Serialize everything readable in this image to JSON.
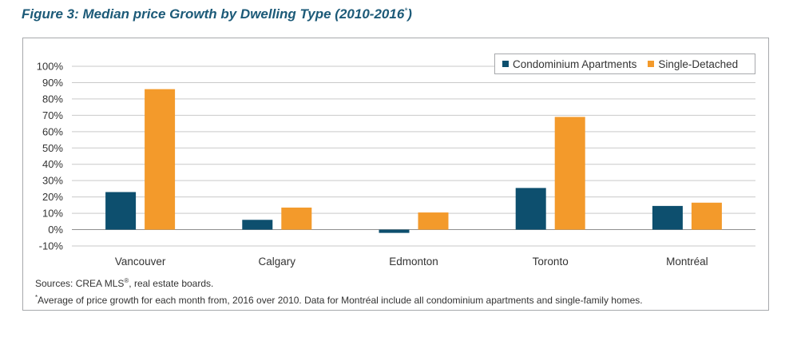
{
  "figure": {
    "title": "Figure 3: Median price Growth by Dwelling Type (2010-2016",
    "title_sup": "*",
    "title_close": ")"
  },
  "notes": {
    "sources_prefix": "Sources: CREA MLS",
    "sources_reg": "®",
    "sources_suffix": ", real estate boards.",
    "footnote_mark": "*",
    "footnote_text": "Average of price growth for each month from, 2016 over 2010. Data for Montréal include all condominium apartments and single-family homes."
  },
  "chart_data": {
    "type": "bar",
    "title": "Figure 3: Median price Growth by Dwelling Type (2010-2016*)",
    "xlabel": "",
    "ylabel": "",
    "categories": [
      "Vancouver",
      "Calgary",
      "Edmonton",
      "Toronto",
      "Montréal"
    ],
    "series": [
      {
        "name": "Condominium Apartments",
        "color": "#0d4f6e",
        "values": [
          23,
          6,
          -2,
          25.5,
          14.5
        ]
      },
      {
        "name": "Single-Detached",
        "color": "#f39a2b",
        "values": [
          86,
          13.5,
          10.5,
          69,
          16.5
        ]
      }
    ],
    "ylim": [
      -10,
      100
    ],
    "yticks": [
      -10,
      0,
      10,
      20,
      30,
      40,
      50,
      60,
      70,
      80,
      90,
      100
    ],
    "ytick_labels": [
      "-10%",
      "0%",
      "10%",
      "20%",
      "30%",
      "40%",
      "50%",
      "60%",
      "70%",
      "80%",
      "90%",
      "100%"
    ],
    "grid": true,
    "legend_position": "top-right"
  }
}
